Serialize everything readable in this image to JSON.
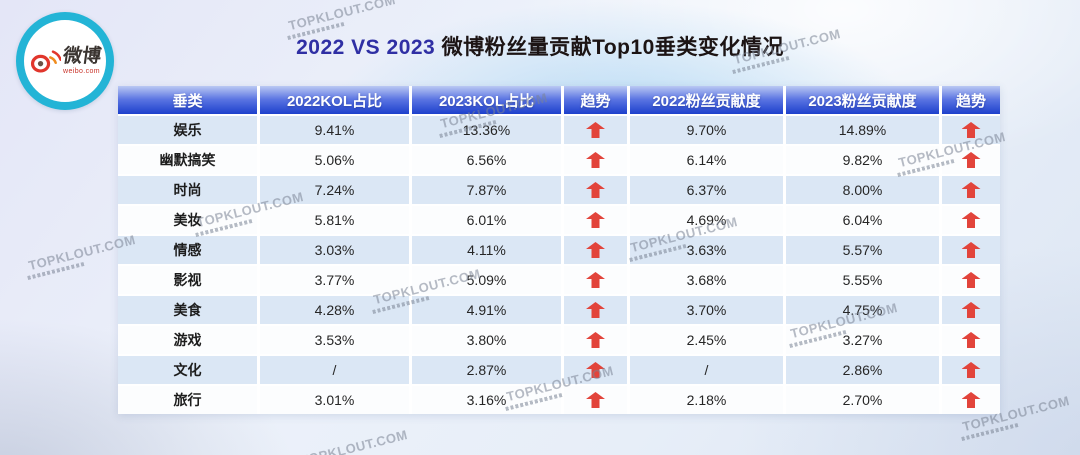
{
  "logo": {
    "brand": "微博",
    "domain": "weibo.com"
  },
  "title": {
    "highlight": "2022 VS 2023",
    "rest": " 微博粉丝量贡献Top10垂类变化情况"
  },
  "watermark": {
    "text": "TOPKLOUT.COM"
  },
  "colors": {
    "title_highlight": "#2f2fa4",
    "header_gradient_top": "#bac8f3",
    "header_gradient_bottom": "#1d40cc",
    "row_alt_bg": "#dbe7f5",
    "row_bg": "#fcfdfe",
    "arrow_red": "#e2443b",
    "logo_ring": "#23b4d6"
  },
  "chart_data": {
    "type": "table",
    "title": "2022 VS 2023 微博粉丝量贡献Top10垂类变化情况",
    "columns": [
      "垂类",
      "2022KOL占比",
      "2023KOL占比",
      "趋势",
      "2022粉丝贡献度",
      "2023粉丝贡献度",
      "趋势"
    ],
    "rows": [
      {
        "category": "娱乐",
        "kol_2022": "9.41%",
        "kol_2023": "13.36%",
        "kol_trend": "up",
        "fans_2022": "9.70%",
        "fans_2023": "14.89%",
        "fans_trend": "up"
      },
      {
        "category": "幽默搞笑",
        "kol_2022": "5.06%",
        "kol_2023": "6.56%",
        "kol_trend": "up",
        "fans_2022": "6.14%",
        "fans_2023": "9.82%",
        "fans_trend": "up"
      },
      {
        "category": "时尚",
        "kol_2022": "7.24%",
        "kol_2023": "7.87%",
        "kol_trend": "up",
        "fans_2022": "6.37%",
        "fans_2023": "8.00%",
        "fans_trend": "up"
      },
      {
        "category": "美妆",
        "kol_2022": "5.81%",
        "kol_2023": "6.01%",
        "kol_trend": "up",
        "fans_2022": "4.69%",
        "fans_2023": "6.04%",
        "fans_trend": "up"
      },
      {
        "category": "情感",
        "kol_2022": "3.03%",
        "kol_2023": "4.11%",
        "kol_trend": "up",
        "fans_2022": "3.63%",
        "fans_2023": "5.57%",
        "fans_trend": "up"
      },
      {
        "category": "影视",
        "kol_2022": "3.77%",
        "kol_2023": "5.09%",
        "kol_trend": "up",
        "fans_2022": "3.68%",
        "fans_2023": "5.55%",
        "fans_trend": "up"
      },
      {
        "category": "美食",
        "kol_2022": "4.28%",
        "kol_2023": "4.91%",
        "kol_trend": "up",
        "fans_2022": "3.70%",
        "fans_2023": "4.75%",
        "fans_trend": "up"
      },
      {
        "category": "游戏",
        "kol_2022": "3.53%",
        "kol_2023": "3.80%",
        "kol_trend": "up",
        "fans_2022": "2.45%",
        "fans_2023": "3.27%",
        "fans_trend": "up"
      },
      {
        "category": "文化",
        "kol_2022": "/",
        "kol_2023": "2.87%",
        "kol_trend": "up",
        "fans_2022": "/",
        "fans_2023": "2.86%",
        "fans_trend": "up"
      },
      {
        "category": "旅行",
        "kol_2022": "3.01%",
        "kol_2023": "3.16%",
        "kol_trend": "up",
        "fans_2022": "2.18%",
        "fans_2023": "2.70%",
        "fans_trend": "up"
      }
    ]
  }
}
